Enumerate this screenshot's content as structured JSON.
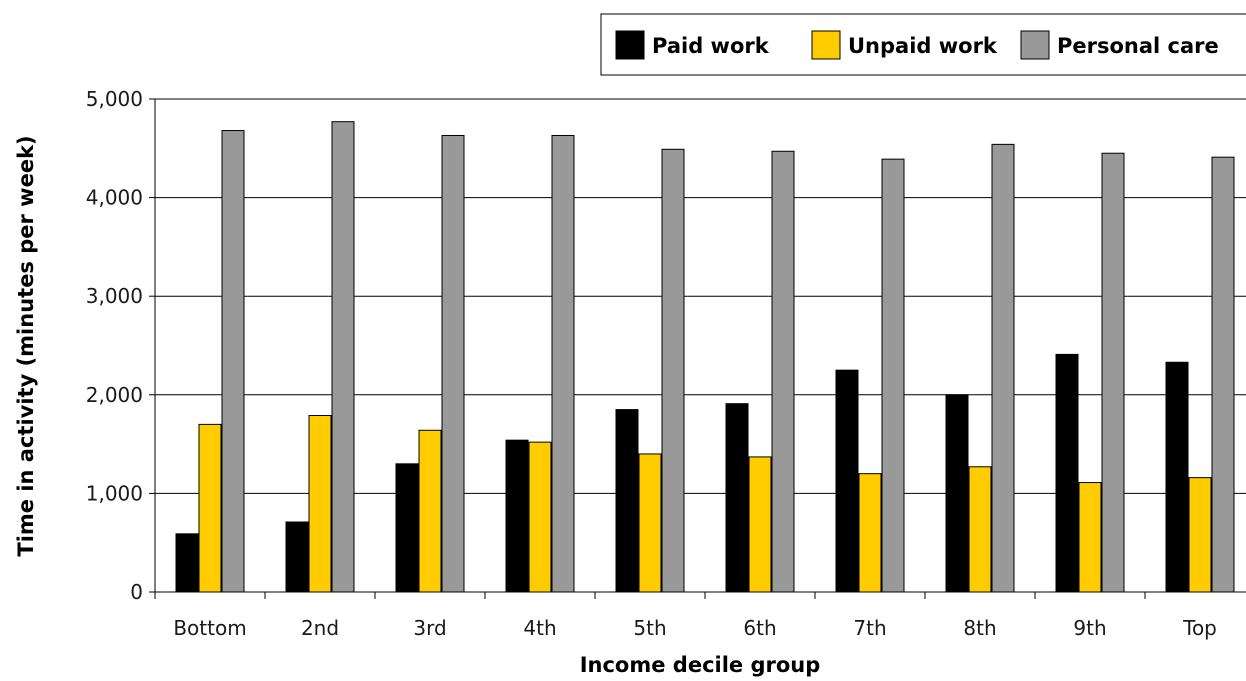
{
  "chart_data": {
    "type": "bar",
    "xlabel": "Income decile group",
    "ylabel": "Time in activity (minutes per week)",
    "ylim": [
      0,
      5000
    ],
    "yticks": [
      0,
      1000,
      2000,
      3000,
      4000,
      5000
    ],
    "ytick_labels": [
      "0",
      "1,000",
      "2,000",
      "3,000",
      "4,000",
      "5,000"
    ],
    "categories": [
      "Bottom",
      "2nd",
      "3rd",
      "4th",
      "5th",
      "6th",
      "7th",
      "8th",
      "9th",
      "Top"
    ],
    "series": [
      {
        "name": "Paid work",
        "color": "#000000",
        "values": [
          590,
          710,
          1300,
          1540,
          1850,
          1910,
          2250,
          2000,
          2410,
          2330
        ]
      },
      {
        "name": "Unpaid work",
        "color": "#FFCC00",
        "values": [
          1700,
          1790,
          1640,
          1520,
          1400,
          1370,
          1200,
          1270,
          1110,
          1160
        ]
      },
      {
        "name": "Personal care",
        "color": "#999999",
        "values": [
          4680,
          4770,
          4630,
          4630,
          4490,
          4470,
          4390,
          4540,
          4450,
          4410
        ]
      }
    ],
    "grid": true,
    "legend_position": "top-right"
  }
}
